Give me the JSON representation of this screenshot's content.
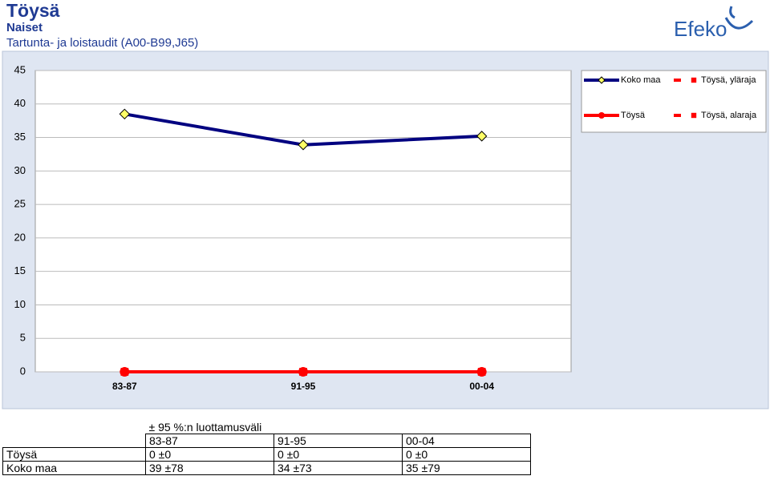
{
  "header": {
    "title": "Töysä",
    "subtitle": "Naiset",
    "topic": "Tartunta- ja loistaudit (A00-B99,J65)",
    "logo": "Efeko"
  },
  "chart_data": {
    "type": "line",
    "categories": [
      "83-87",
      "91-95",
      "00-04"
    ],
    "ylim": [
      0,
      45
    ],
    "yticks": [
      0,
      5,
      10,
      15,
      20,
      25,
      30,
      35,
      40,
      45
    ],
    "grid": true,
    "legend": "top-right",
    "series": [
      {
        "name": "Koko maa",
        "color": "#000080",
        "marker": "diamond",
        "marker_color": "#ffff66",
        "values": [
          38.5,
          33.9,
          35.2
        ]
      },
      {
        "name": "Töysä, yläraja",
        "color": "#ff0000",
        "marker": "square",
        "dashed": true,
        "values": [
          0,
          0,
          0
        ]
      },
      {
        "name": "Töysä",
        "color": "#ff0000",
        "marker": "circle",
        "values": [
          0,
          0,
          0
        ]
      },
      {
        "name": "Töysä, alaraja",
        "color": "#ff0000",
        "marker": "square",
        "dashed": true,
        "values": [
          0,
          0,
          0
        ]
      }
    ]
  },
  "table": {
    "caption": "± 95 %:n luottamusväli",
    "columns": [
      "83-87",
      "91-95",
      "00-04"
    ],
    "rows": [
      [
        "Töysä",
        "0 ±0",
        "0 ±0",
        "0 ±0"
      ],
      [
        "Koko maa",
        "39 ±78",
        "34 ±73",
        "35 ±79"
      ]
    ]
  }
}
